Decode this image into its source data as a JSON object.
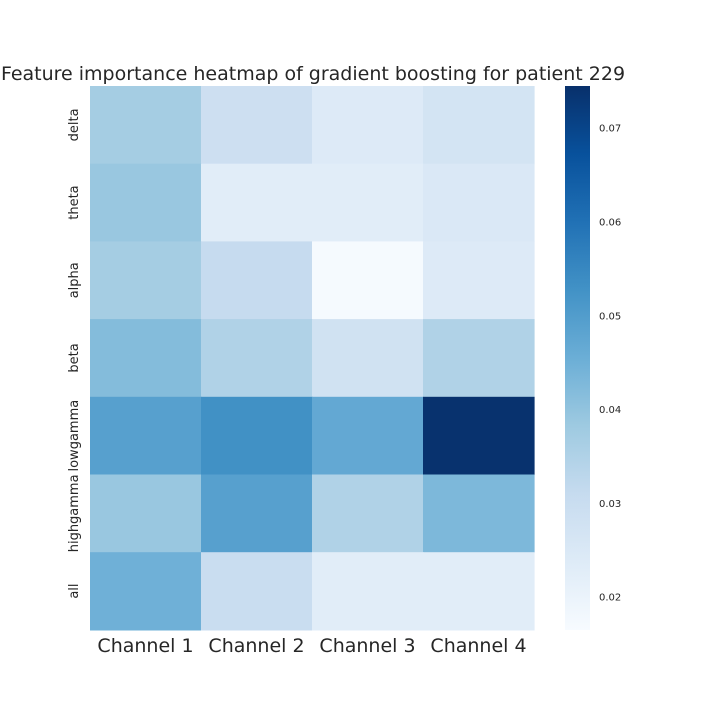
{
  "chart_data": {
    "type": "heatmap",
    "title": "Feature importance heatmap of gradient boosting for patient 229",
    "x_labels": [
      "Channel 1",
      "Channel 2",
      "Channel 3",
      "Channel 4"
    ],
    "y_labels": [
      "delta",
      "theta",
      "alpha",
      "beta",
      "lowgamma",
      "highgamma",
      "all"
    ],
    "values": [
      [
        0.037,
        0.029,
        0.024,
        0.027
      ],
      [
        0.039,
        0.023,
        0.023,
        0.025
      ],
      [
        0.037,
        0.031,
        0.017,
        0.024
      ],
      [
        0.042,
        0.035,
        0.028,
        0.035
      ],
      [
        0.049,
        0.053,
        0.047,
        0.074
      ],
      [
        0.039,
        0.049,
        0.035,
        0.043
      ],
      [
        0.045,
        0.03,
        0.023,
        0.023
      ]
    ],
    "vmin": 0.0165,
    "vmax": 0.0745,
    "colormap": "Blues",
    "colorbar_ticks": [
      0.02,
      0.03,
      0.04,
      0.05,
      0.06,
      0.07
    ],
    "colorbar_tick_labels": [
      "0.02",
      "0.03",
      "0.04",
      "0.05",
      "0.06",
      "0.07"
    ],
    "grid": false,
    "colorbar_position": "right"
  }
}
